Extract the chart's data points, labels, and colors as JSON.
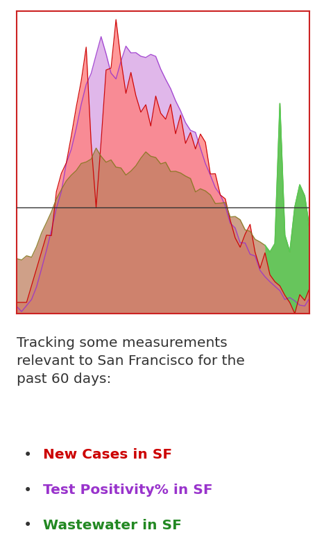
{
  "title_text": "Tracking some measurements\nrelevant to San Francisco for the\npast 60 days:",
  "legend_items": [
    {
      "label": "New Cases in SF",
      "color": "#cc0000"
    },
    {
      "label": "Test Positivity% in SF",
      "color": "#9933cc"
    },
    {
      "label": "Wastewater in SF",
      "color": "#228822"
    }
  ],
  "new_cases_color": "#cc0000",
  "new_cases_fill": "#ff8080",
  "positivity_color": "#9933cc",
  "positivity_fill": "#cc88dd",
  "wastewater_color": "#887722",
  "wastewater_fill": "#c08060",
  "wastewater_spike_fill": "#55cc55",
  "background_color": "#ffffff",
  "chart_bg": "#ffffff",
  "border_color": "#cc2222",
  "hline_color": "#333333",
  "n_points": 60
}
